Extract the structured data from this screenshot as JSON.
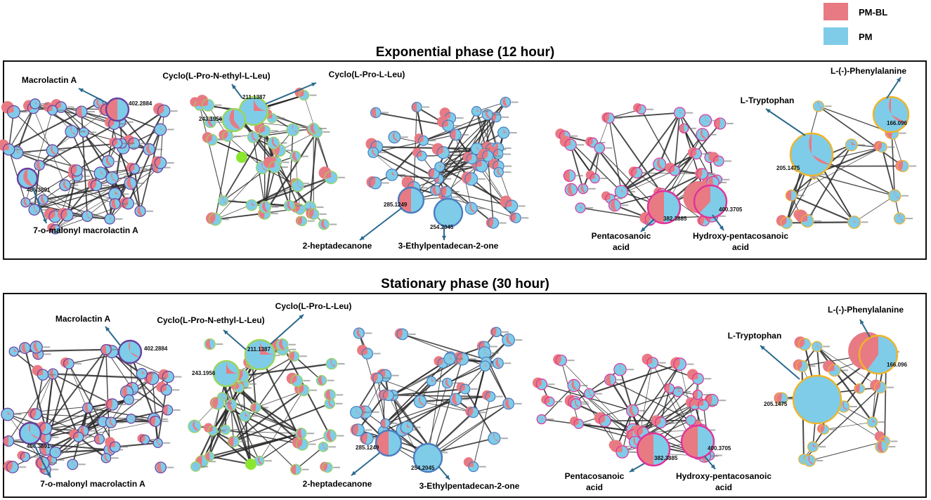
{
  "colors": {
    "pm_bl": "#E87A83",
    "pm": "#7FCCE8",
    "arrow": "#2B6A8C",
    "edge": "#2a2a2a",
    "ring_purple": "#6A3FA0",
    "ring_green": "#9BD55A",
    "ring_blue": "#4C7CC0",
    "ring_magenta": "#E0339A",
    "ring_gold": "#F0B428",
    "lime": "#8AE62F"
  },
  "legend": {
    "items": [
      {
        "label": "PM-BL",
        "color": "#E87A83"
      },
      {
        "label": "PM",
        "color": "#7FCCE8"
      }
    ]
  },
  "panels": [
    {
      "title": "Exponential phase (12 hour)",
      "networks": [
        {
          "id": "e1",
          "ring": "purple",
          "hubs": [
            {
              "value": "402.2884",
              "fraction": 0.5
            },
            {
              "value": "486.3891",
              "fraction": 0.4
            }
          ],
          "annotations": [
            {
              "text": "Macrolactin A"
            },
            {
              "text": "7-o-malonyl macrolactin A"
            }
          ]
        },
        {
          "id": "e2",
          "ring": "green",
          "hubs": [
            {
              "value": "211.1387",
              "fraction": 0.25
            },
            {
              "value": "243.1956",
              "fraction": 0.4
            }
          ],
          "annotations": [
            {
              "text": "Cyclo(L-Pro-N-ethyl-L-Leu)"
            },
            {
              "text": "Cyclo(L-Pro-L-Leu)"
            }
          ]
        },
        {
          "id": "e3",
          "ring": "blue",
          "hubs": [
            {
              "value": "285.1249",
              "fraction": 0.5
            },
            {
              "value": "254.2045",
              "fraction": 0.0
            }
          ],
          "annotations": [
            {
              "text": "2-heptadecanone"
            },
            {
              "text": "3-Ethylpentadecan-2-one"
            }
          ]
        },
        {
          "id": "e4",
          "ring": "magenta",
          "hubs": [
            {
              "value": "382.3885",
              "fraction": 0.5
            },
            {
              "value": "400.3705",
              "fraction": 0.62
            }
          ],
          "annotations": [
            {
              "text": "Pentacosanoic",
              "text2": "acid"
            },
            {
              "text": "Hydroxy-pentacosanoic",
              "text2": "acid"
            }
          ]
        },
        {
          "id": "e5",
          "ring": "gold",
          "hubs": [
            {
              "value": "166.096",
              "fraction": 0.33
            },
            {
              "value": "205.1475",
              "fraction": 0.33
            }
          ],
          "annotations": [
            {
              "text": "L-(-)-Phenylalanine"
            },
            {
              "text": "L-Tryptophan"
            }
          ]
        }
      ]
    },
    {
      "title": "Stationary phase (30 hour)",
      "networks": [
        {
          "id": "s1",
          "ring": "purple",
          "hubs": [
            {
              "value": "402.2884",
              "fraction": 0.33
            },
            {
              "value": "486.3891",
              "fraction": 0.33
            }
          ],
          "annotations": [
            {
              "text": "Macrolactin A"
            },
            {
              "text": "7-o-malonyl macrolactin A"
            }
          ]
        },
        {
          "id": "s2",
          "ring": "green",
          "hubs": [
            {
              "value": "211.1387",
              "fraction": 0.25
            },
            {
              "value": "243.1956",
              "fraction": 0.25
            }
          ],
          "annotations": [
            {
              "text": "Cyclo(L-Pro-N-ethyl-L-Leu)"
            },
            {
              "text": "Cyclo(L-Pro-L-Leu)"
            }
          ]
        },
        {
          "id": "s3",
          "ring": "blue",
          "hubs": [
            {
              "value": "285.1249",
              "fraction": 0.5
            },
            {
              "value": "254.2045",
              "fraction": 0.0
            }
          ],
          "annotations": [
            {
              "text": "2-heptadecanone"
            },
            {
              "text": "3-Ethylpentadecan-2-one"
            }
          ]
        },
        {
          "id": "s4",
          "ring": "magenta",
          "hubs": [
            {
              "value": "382.3885",
              "fraction": 0.5
            },
            {
              "value": "400.3705",
              "fraction": 0.5
            }
          ],
          "annotations": [
            {
              "text": "Pentacosanoic",
              "text2": "acid"
            },
            {
              "text": "Hydroxy-pentacosanoic",
              "text2": "acid"
            }
          ]
        },
        {
          "id": "s5",
          "ring": "gold",
          "hubs": [
            {
              "value": "166.096",
              "fraction": 0.6
            },
            {
              "value": "205.1475",
              "fraction": 0.0
            }
          ],
          "annotations": [
            {
              "text": "L-(-)-Phenylalanine"
            },
            {
              "text": "L-Tryptophan"
            }
          ]
        }
      ]
    }
  ]
}
